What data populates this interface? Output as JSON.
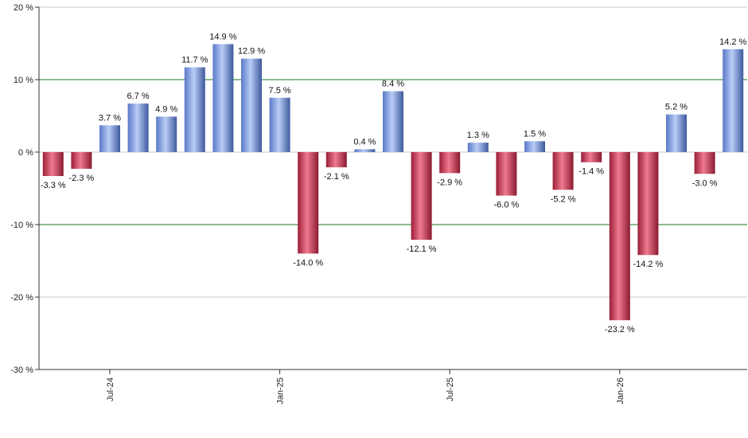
{
  "chart_data": {
    "type": "bar",
    "title": "",
    "xlabel": "",
    "ylabel": "",
    "ylim": [
      -30,
      20
    ],
    "y_ticks": [
      {
        "value": 20,
        "label": "20 %"
      },
      {
        "value": 10,
        "label": "10 %"
      },
      {
        "value": 0,
        "label": "0 %"
      },
      {
        "value": -10,
        "label": "-10 %"
      },
      {
        "value": -20,
        "label": "-20 %"
      },
      {
        "value": -30,
        "label": "-30 %"
      }
    ],
    "x_ticks": [
      {
        "index": 2,
        "label": "Jul-24"
      },
      {
        "index": 8,
        "label": "Jan-25"
      },
      {
        "index": 14,
        "label": "Jul-25"
      },
      {
        "index": 20,
        "label": "Jan-26"
      }
    ],
    "values": [
      -3.3,
      -2.3,
      3.7,
      6.7,
      4.9,
      11.7,
      14.9,
      12.9,
      7.5,
      -14.0,
      -2.1,
      0.4,
      8.4,
      -12.1,
      -2.9,
      1.3,
      -6.0,
      1.5,
      -5.2,
      -1.4,
      -23.2,
      -14.2,
      5.2,
      -3.0,
      14.2
    ],
    "labels": [
      "-3.3 %",
      "-2.3 %",
      "3.7 %",
      "6.7 %",
      "4.9 %",
      "11.7 %",
      "14.9 %",
      "12.9 %",
      "7.5 %",
      "-14.0 %",
      "-2.1 %",
      "0.4 %",
      "8.4 %",
      "-12.1 %",
      "-2.9 %",
      "1.3 %",
      "-6.0 %",
      "1.5 %",
      "-5.2 %",
      "-1.4 %",
      "-23.2 %",
      "-14.2 %",
      "5.2 %",
      "-3.0 %",
      "14.2 %"
    ],
    "grid": true,
    "highlight_lines": [
      10,
      -10
    ],
    "colors": {
      "positive": "#7f9fe6",
      "negative": "#c8304c",
      "highlight_grid": "#1a7a1a",
      "grid": "#c8c8c8",
      "axis": "#333333"
    }
  }
}
